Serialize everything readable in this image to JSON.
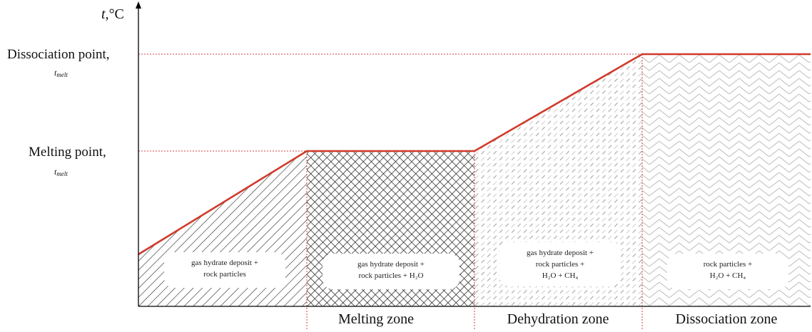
{
  "axis": {
    "y_label": "t,",
    "y_unit": "°C"
  },
  "levels": {
    "dissociation": {
      "label": "Dissociation point,",
      "symbol": "t",
      "subscript": "melt"
    },
    "melting": {
      "label": "Melting point,",
      "symbol": "t",
      "subscript": "melt"
    }
  },
  "regions": [
    {
      "id": "r1",
      "lines": [
        "gas hydrate deposit +",
        "rock particles"
      ]
    },
    {
      "id": "r2",
      "lines": [
        "gas hydrate deposit +",
        "rock particles + H₂O"
      ]
    },
    {
      "id": "r3",
      "lines": [
        "gas hydrate deposit +",
        "rock particles +",
        "H₂O + CH₄"
      ]
    },
    {
      "id": "r4",
      "lines": [
        "rock particles +",
        "H₂O + CH₄"
      ]
    }
  ],
  "zones": [
    {
      "id": "melting",
      "label": "Melting zone"
    },
    {
      "id": "dehydration",
      "label": "Dehydration zone"
    },
    {
      "id": "dissociation",
      "label": "Dissociation zone"
    }
  ],
  "colors": {
    "curve": "#d03a2a",
    "guide": "#d04040",
    "hatch": "#333333",
    "hatch_light": "#b0b0b0",
    "axis": "#000000"
  }
}
